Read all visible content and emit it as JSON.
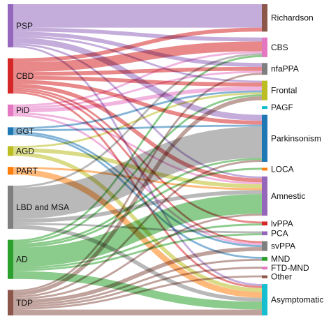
{
  "diagram": {
    "type": "sankey",
    "sources": [
      {
        "id": "psp",
        "label": "PSP",
        "color": "#9467bd"
      },
      {
        "id": "cbd",
        "label": "CBD",
        "color": "#d62728"
      },
      {
        "id": "pid",
        "label": "PiD",
        "color": "#e377c2"
      },
      {
        "id": "ggt",
        "label": "GGT",
        "color": "#1f77b4"
      },
      {
        "id": "agd",
        "label": "AGD",
        "color": "#bcbd22"
      },
      {
        "id": "part",
        "label": "PART",
        "color": "#ff7f0e"
      },
      {
        "id": "lbd",
        "label": "LBD and MSA",
        "color": "#7f7f7f"
      },
      {
        "id": "ad",
        "label": "AD",
        "color": "#2ca02c"
      },
      {
        "id": "tdp",
        "label": "TDP",
        "color": "#8c564b"
      }
    ],
    "targets": [
      {
        "id": "richardson",
        "label": "Richardson",
        "color": "#8c564b"
      },
      {
        "id": "cbs",
        "label": "CBS",
        "color": "#e377c2"
      },
      {
        "id": "nfappa",
        "label": "nfaPPA",
        "color": "#7f7f7f"
      },
      {
        "id": "frontal",
        "label": "Frontal",
        "color": "#bcbd22"
      },
      {
        "id": "pagf",
        "label": "PAGF",
        "color": "#17becf"
      },
      {
        "id": "parkinsonism",
        "label": "Parkinsonism",
        "color": "#1f77b4"
      },
      {
        "id": "loca",
        "label": "LOCA",
        "color": "#ff7f0e"
      },
      {
        "id": "amnestic",
        "label": "Amnestic",
        "color": "#9467bd"
      },
      {
        "id": "lvppa",
        "label": "lvPPA",
        "color": "#d62728"
      },
      {
        "id": "pca",
        "label": "PCA",
        "color": "#9467bd"
      },
      {
        "id": "svppa",
        "label": "svPPA",
        "color": "#7f7f7f"
      },
      {
        "id": "mnd",
        "label": "MND",
        "color": "#2ca02c"
      },
      {
        "id": "ftdmnd",
        "label": "FTD-MND",
        "color": "#e377c2"
      },
      {
        "id": "other",
        "label": "Other",
        "color": "#8c564b"
      },
      {
        "id": "asymptomatic",
        "label": "Asymptomatic",
        "color": "#17becf"
      }
    ],
    "links": [
      {
        "source": "psp",
        "target": "richardson",
        "value": 12
      },
      {
        "source": "psp",
        "target": "cbs",
        "value": 2
      },
      {
        "source": "psp",
        "target": "nfappa",
        "value": 2
      },
      {
        "source": "psp",
        "target": "frontal",
        "value": 1
      },
      {
        "source": "psp",
        "target": "parkinsonism",
        "value": 3
      },
      {
        "source": "psp",
        "target": "amnestic",
        "value": 1
      },
      {
        "source": "psp",
        "target": "asymptomatic",
        "value": 1
      },
      {
        "source": "cbd",
        "target": "richardson",
        "value": 2
      },
      {
        "source": "cbd",
        "target": "cbs",
        "value": 5
      },
      {
        "source": "cbd",
        "target": "nfappa",
        "value": 2
      },
      {
        "source": "cbd",
        "target": "frontal",
        "value": 2
      },
      {
        "source": "cbd",
        "target": "parkinsonism",
        "value": 2
      },
      {
        "source": "cbd",
        "target": "amnestic",
        "value": 2
      },
      {
        "source": "cbd",
        "target": "lvppa",
        "value": 1
      },
      {
        "source": "cbd",
        "target": "svppa",
        "value": 1
      },
      {
        "source": "cbd",
        "target": "asymptomatic",
        "value": 1
      },
      {
        "source": "pid",
        "target": "cbs",
        "value": 1
      },
      {
        "source": "pid",
        "target": "nfappa",
        "value": 1
      },
      {
        "source": "pid",
        "target": "frontal",
        "value": 2
      },
      {
        "source": "pid",
        "target": "amnestic",
        "value": 1
      },
      {
        "source": "pid",
        "target": "svppa",
        "value": 1
      },
      {
        "source": "ggt",
        "target": "frontal",
        "value": 1
      },
      {
        "source": "ggt",
        "target": "mnd",
        "value": 1
      },
      {
        "source": "ggt",
        "target": "parkinsonism",
        "value": 1
      },
      {
        "source": "ggt",
        "target": "svppa",
        "value": 1
      },
      {
        "source": "agd",
        "target": "frontal",
        "value": 1
      },
      {
        "source": "agd",
        "target": "amnestic",
        "value": 2
      },
      {
        "source": "agd",
        "target": "asymptomatic",
        "value": 2
      },
      {
        "source": "part",
        "target": "amnestic",
        "value": 1
      },
      {
        "source": "part",
        "target": "asymptomatic",
        "value": 3
      },
      {
        "source": "lbd",
        "target": "parkinsonism",
        "value": 16
      },
      {
        "source": "lbd",
        "target": "amnestic",
        "value": 2
      },
      {
        "source": "lbd",
        "target": "cbs",
        "value": 1
      },
      {
        "source": "lbd",
        "target": "pca",
        "value": 1
      },
      {
        "source": "lbd",
        "target": "asymptomatic",
        "value": 2
      },
      {
        "source": "ad",
        "target": "amnestic",
        "value": 10
      },
      {
        "source": "ad",
        "target": "frontal",
        "value": 1
      },
      {
        "source": "ad",
        "target": "cbs",
        "value": 1
      },
      {
        "source": "ad",
        "target": "lvppa",
        "value": 1
      },
      {
        "source": "ad",
        "target": "pca",
        "value": 1
      },
      {
        "source": "ad",
        "target": "loca",
        "value": 1
      },
      {
        "source": "ad",
        "target": "asymptomatic",
        "value": 4
      },
      {
        "source": "ad",
        "target": "parkinsonism",
        "value": 1
      },
      {
        "source": "tdp",
        "target": "frontal",
        "value": 2
      },
      {
        "source": "tdp",
        "target": "parkinsonism",
        "value": 1
      },
      {
        "source": "tdp",
        "target": "svppa",
        "value": 2
      },
      {
        "source": "tdp",
        "target": "mnd",
        "value": 1
      },
      {
        "source": "tdp",
        "target": "ftdmnd",
        "value": 1
      },
      {
        "source": "tdp",
        "target": "other",
        "value": 1
      },
      {
        "source": "tdp",
        "target": "amnestic",
        "value": 1
      },
      {
        "source": "tdp",
        "target": "nfappa",
        "value": 1
      },
      {
        "source": "tdp",
        "target": "asymptomatic",
        "value": 3
      }
    ]
  }
}
